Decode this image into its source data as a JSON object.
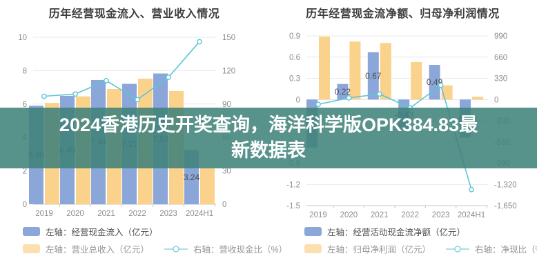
{
  "banner": {
    "line1": "2024香港历史开奖查询，海洋科学版OPK384.83最",
    "line2": "新数据表",
    "bg_rgba": "rgba(62,130,122,0.87)",
    "text_color": "#ffffff"
  },
  "colors": {
    "bar_blue": "#8ba7d9",
    "bar_orange": "#fbd28c",
    "line_teal": "#5bc6d5",
    "legend_line_teal": "#8ed4e0",
    "legend_orange_swatch": "#fcdfae",
    "axis_text": "#8c8c8c",
    "grid": "#e9e9e9",
    "baseline": "#c9c9c9",
    "zero_line": "#dddddd",
    "bar_label": "#4d4d4d",
    "title": "#3d3d3d"
  },
  "chart_data": [
    {
      "type": "bar+line",
      "title": "历年经营现金流入、营业收入情况",
      "categories": [
        "2019",
        "2020",
        "2021",
        "2022",
        "2023",
        "2024H1"
      ],
      "series": [
        {
          "name": "左轴：经营现金流入（亿元）",
          "kind": "bar",
          "axis": "left",
          "color": "#8ba7d9",
          "values": [
            5.9,
            6.49,
            7.44,
            7.21,
            7.83,
            3.24
          ],
          "labels": [
            "5.90",
            "6.49",
            "7.44",
            "7.21",
            "7.83",
            "3.24"
          ]
        },
        {
          "name": "左轴：营业总收入（亿元）",
          "kind": "bar",
          "axis": "left",
          "color": "#fbd28c",
          "values": [
            6.07,
            6.46,
            6.9,
            7.52,
            6.78,
            2.19
          ],
          "labels": [
            "",
            "",
            "",
            "",
            "",
            ""
          ]
        },
        {
          "name": "右轴：营收现金比（%）",
          "kind": "line",
          "axis": "right",
          "color": "#5bc6d5",
          "values": [
            97,
            99,
            111,
            94,
            114,
            146
          ]
        }
      ],
      "left_axis": {
        "tick_values": [
          10,
          8,
          6,
          4,
          2,
          0
        ],
        "tick_labels": [
          "10",
          "8",
          "6",
          "4",
          "2",
          "0"
        ]
      },
      "right_axis": {
        "tick_values": [
          150,
          120,
          90,
          60,
          30,
          0
        ],
        "tick_labels": [
          "150",
          "120",
          "90",
          "60",
          "30",
          "0"
        ]
      },
      "legend_rows": [
        [
          0
        ],
        [
          1,
          2
        ]
      ]
    },
    {
      "type": "bar+line",
      "title": "历年经营现金流净额、归母净利润情况",
      "categories": [
        "2019",
        "2020",
        "2021",
        "2022",
        "2023",
        "2024H1"
      ],
      "series": [
        {
          "name": "左轴：经营活动现金流净额（亿元）",
          "kind": "bar",
          "axis": "left",
          "color": "#8ba7d9",
          "values": [
            -0.68,
            0.22,
            0.67,
            -0.43,
            0.49,
            -0.54
          ],
          "labels": [
            "",
            "0.22",
            "0.67",
            "-0.43",
            "0.49",
            "-0.54"
          ]
        },
        {
          "name": "左轴：归母净利润（亿元）",
          "kind": "bar",
          "axis": "left",
          "color": "#fbd28c",
          "values": [
            0.89,
            0.82,
            0.8,
            0.53,
            0.2,
            0.04
          ],
          "labels": [
            "",
            "",
            "",
            "",
            "",
            ""
          ]
        },
        {
          "name": "右轴：净现比（%）",
          "kind": "line",
          "axis": "right",
          "color": "#5bc6d5",
          "values": [
            -75,
            25,
            86,
            -130,
            222,
            -1400
          ]
        }
      ],
      "left_axis": {
        "tick_values": [
          0.9,
          0.6,
          0.3,
          0,
          -0.3,
          -0.6,
          -0.9,
          -1.2,
          -1.5
        ],
        "tick_labels": [
          "0.9",
          "0.6",
          "0.3",
          "0",
          "-0.3",
          "-0.6",
          "-0.9",
          "-1.2",
          "-1.5"
        ]
      },
      "right_axis": {
        "tick_values": [
          990,
          660,
          330,
          0,
          -330,
          -660,
          -990,
          -1320,
          -1650
        ],
        "tick_labels": [
          "990",
          "660",
          "330",
          "0",
          "-330",
          "-660",
          "-990",
          "-1,320",
          "-1,650"
        ]
      },
      "legend_rows": [
        [
          0
        ],
        [
          1,
          2
        ]
      ]
    }
  ]
}
